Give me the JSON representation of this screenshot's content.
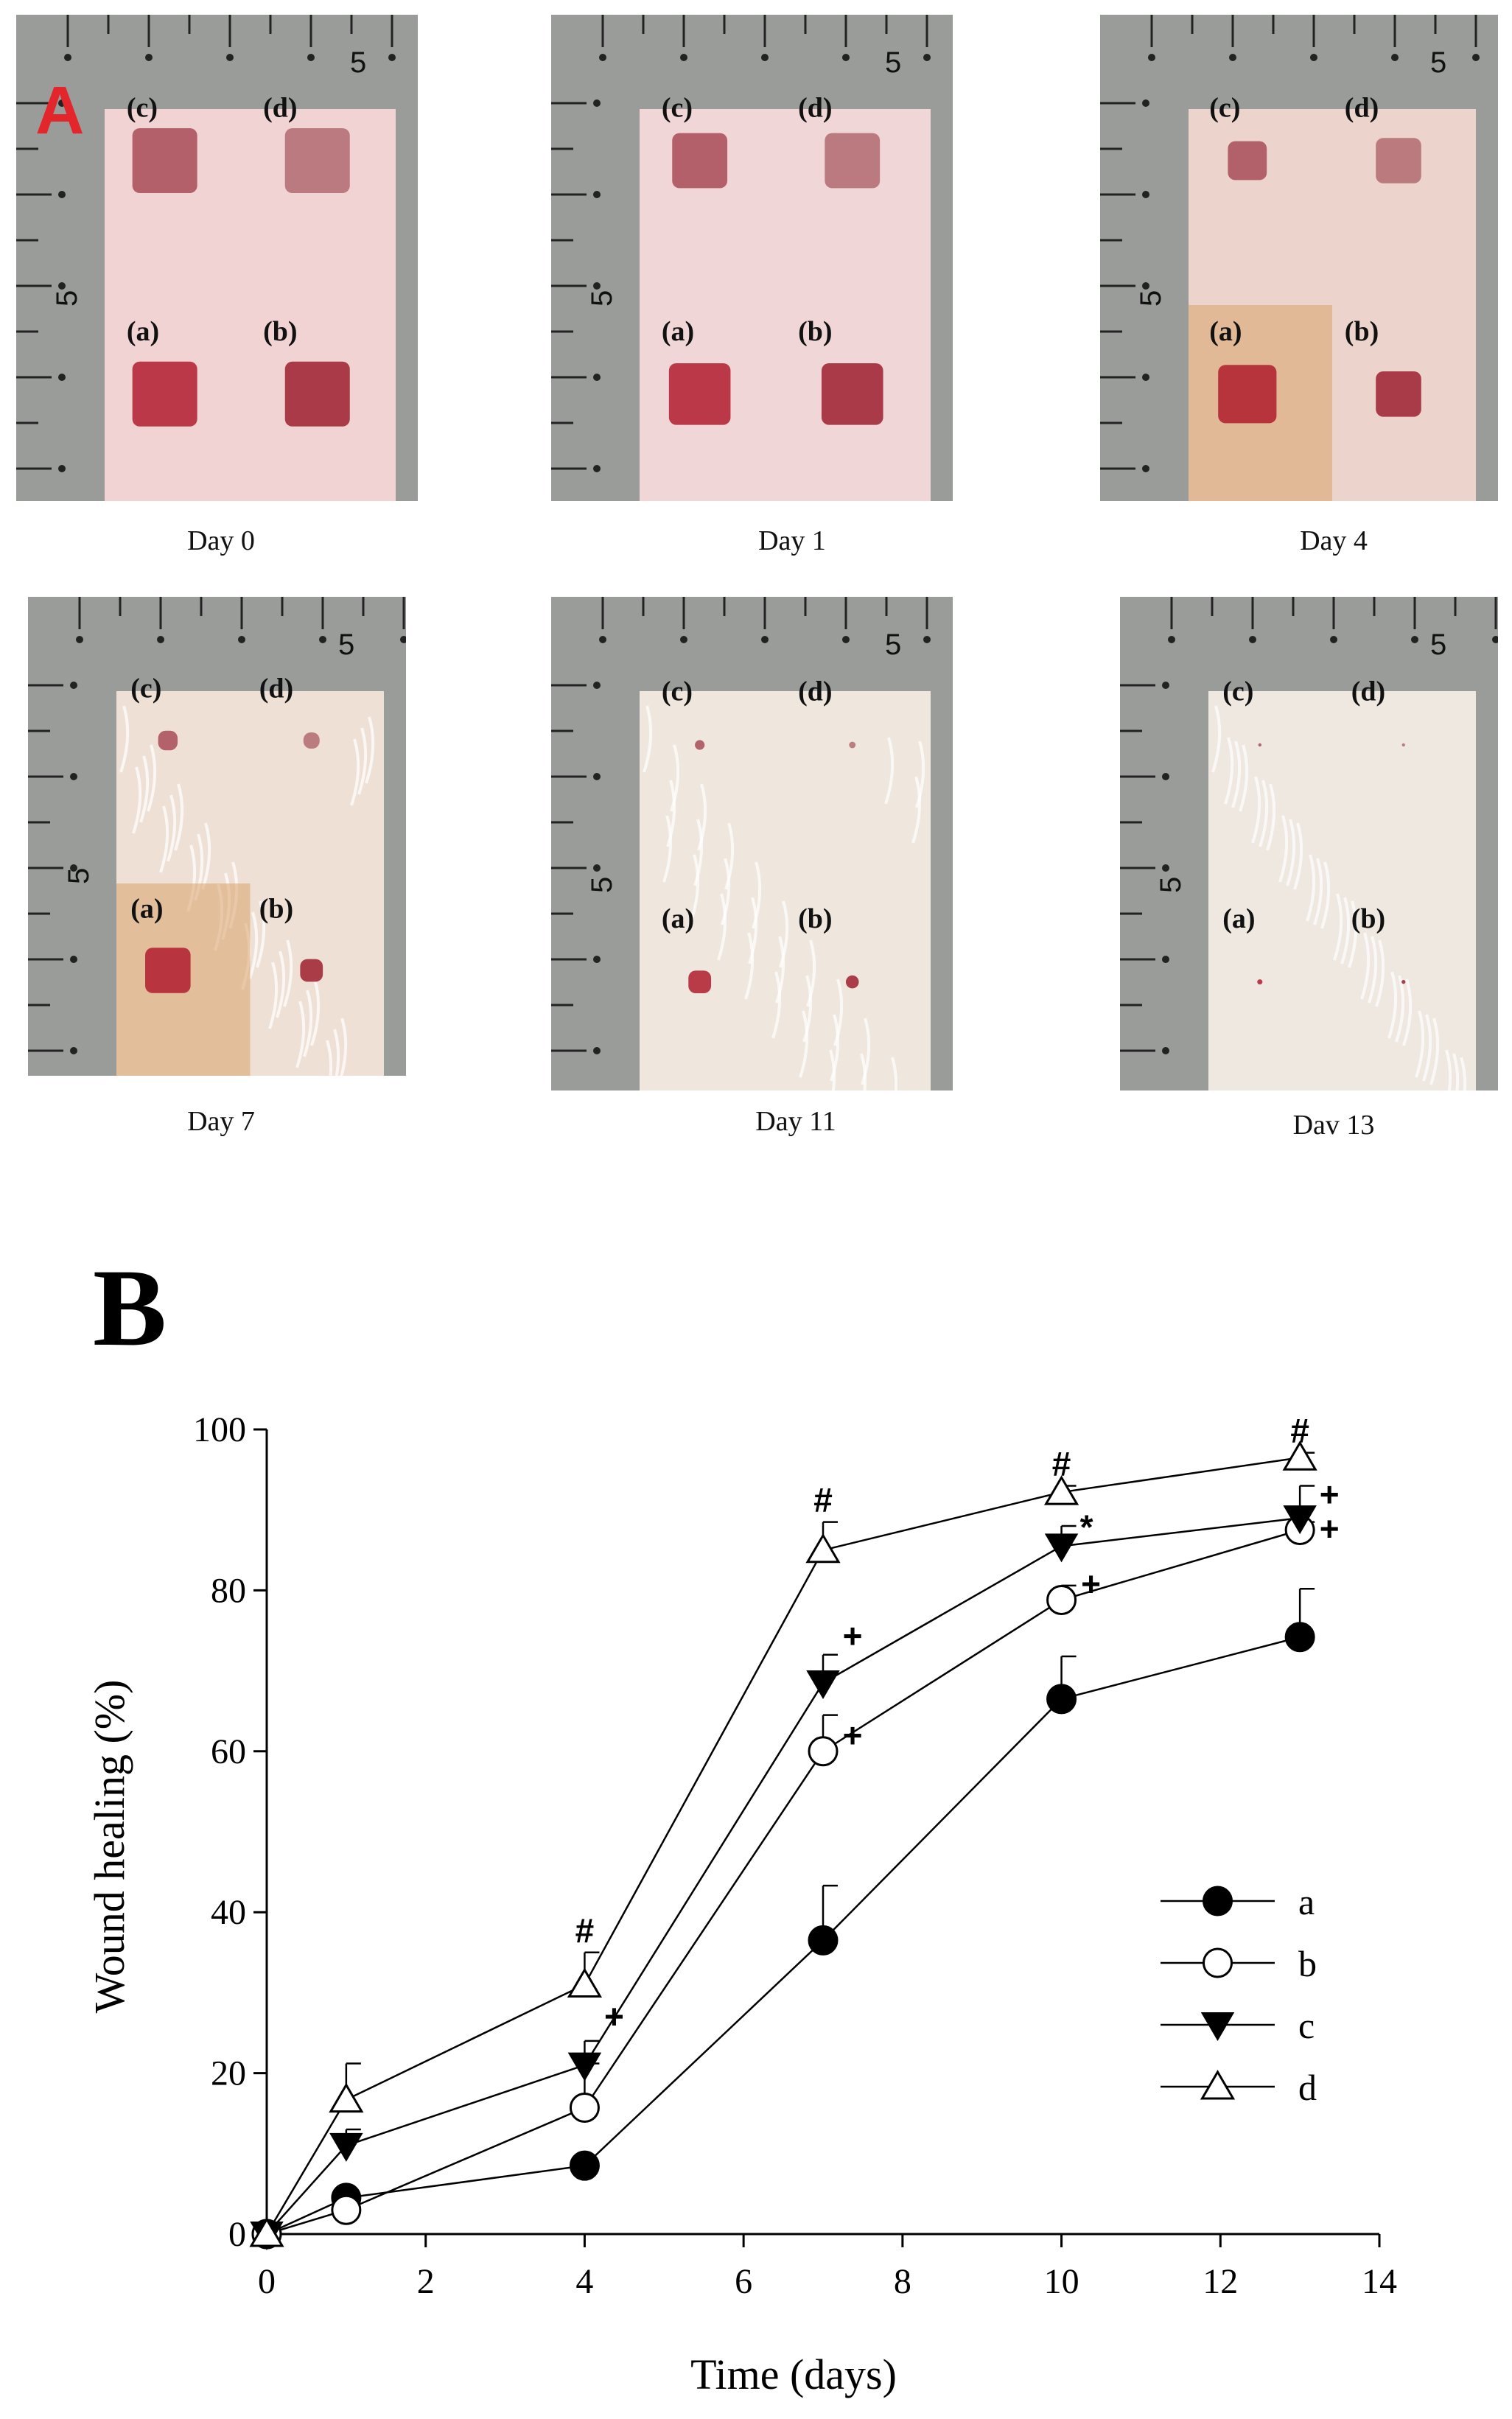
{
  "panel_a": {
    "label": "A",
    "photos": [
      {
        "caption": "Day 0",
        "labels": [
          "(a)",
          "(b)",
          "(c)",
          "(d)"
        ],
        "ruler_mark": "5",
        "stage": 0
      },
      {
        "caption": "Day 1",
        "labels": [
          "(a)",
          "(b)",
          "(c)",
          "(d)"
        ],
        "ruler_mark": "5",
        "stage": 1
      },
      {
        "caption": "Day 4",
        "labels": [
          "(a)",
          "(b)",
          "(c)",
          "(d)"
        ],
        "ruler_mark": "5",
        "stage": 2
      },
      {
        "caption": "Day 7",
        "labels": [
          "(a)",
          "(b)",
          "(c)",
          "(d)"
        ],
        "ruler_mark": "5",
        "stage": 3
      },
      {
        "caption": "Day 11",
        "labels": [
          "(a)",
          "(b)",
          "(c)",
          "(d)"
        ],
        "ruler_mark": "5",
        "stage": 4
      },
      {
        "caption": "Dav 13",
        "labels": [
          "(a)",
          "(b)",
          "(c)",
          "(d)"
        ],
        "ruler_mark": "5",
        "stage": 5
      }
    ]
  },
  "panel_b": {
    "label": "B"
  },
  "chart_data": {
    "type": "line",
    "xlabel": "Time (days)",
    "ylabel": "Wound healing (%)",
    "xlim": [
      0,
      14
    ],
    "ylim": [
      0,
      100
    ],
    "xticks": [
      0,
      2,
      4,
      6,
      8,
      10,
      12,
      14
    ],
    "yticks": [
      0,
      20,
      40,
      60,
      80,
      100
    ],
    "x": [
      0,
      1,
      4,
      7,
      10,
      13
    ],
    "legend_position": "right-middle",
    "series": [
      {
        "name": "a",
        "marker": "filled-circle",
        "values": [
          0,
          4.5,
          8.5,
          36.5,
          66.5,
          74.2
        ],
        "errors": [
          0,
          0,
          0,
          6.8,
          5.3,
          6.0
        ],
        "annotations": [
          "",
          "",
          "",
          "",
          "",
          ""
        ]
      },
      {
        "name": "b",
        "marker": "open-circle",
        "values": [
          0,
          3.0,
          15.7,
          60.0,
          78.8,
          87.5
        ],
        "errors": [
          0,
          0,
          5.5,
          4.5,
          1.8,
          1.0
        ],
        "annotations": [
          "",
          "",
          "",
          "+",
          "+",
          "+"
        ]
      },
      {
        "name": "c",
        "marker": "filled-triangle-down",
        "values": [
          0,
          11.0,
          21.0,
          68.5,
          85.5,
          89.0
        ],
        "errors": [
          0,
          2.0,
          3.0,
          3.5,
          2.5,
          4.0
        ],
        "annotations": [
          "",
          "",
          "+",
          "+",
          "*",
          "+"
        ]
      },
      {
        "name": "d",
        "marker": "open-triangle-up",
        "values": [
          0,
          16.7,
          31.0,
          85.0,
          92.2,
          96.5
        ],
        "errors": [
          0,
          4.5,
          4.0,
          3.5,
          0.8,
          0.6
        ],
        "annotations": [
          "",
          "",
          "#",
          "#",
          "#",
          "#"
        ]
      }
    ]
  }
}
